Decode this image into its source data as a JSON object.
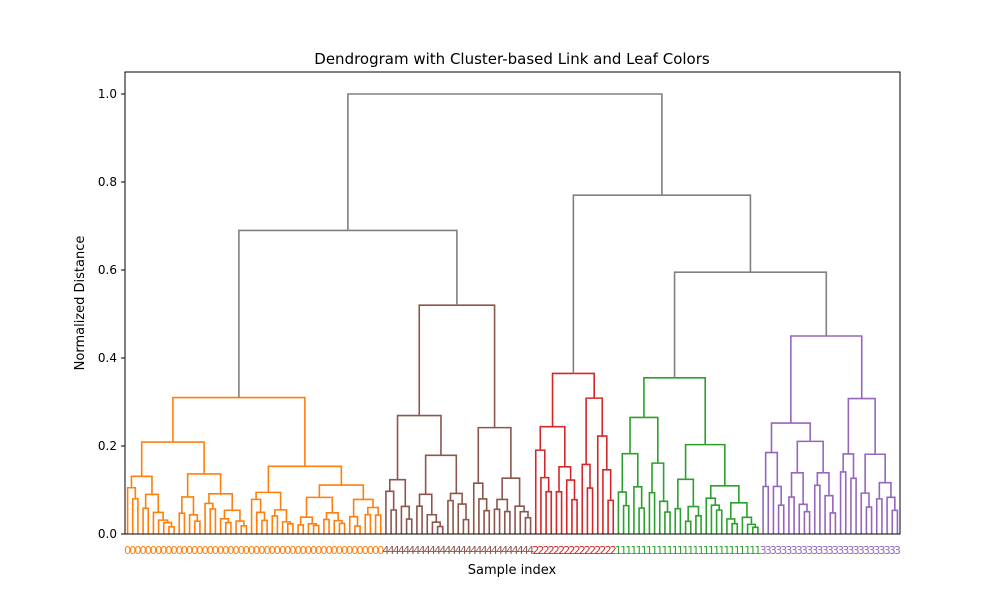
{
  "chart_data": {
    "type": "dendrogram",
    "title": "Dendrogram with Cluster-based Link and Leaf Colors",
    "xlabel": "Sample index",
    "ylabel": "Normalized Distance",
    "ylim": [
      0,
      1.05
    ],
    "yticks": [
      0.0,
      0.2,
      0.4,
      0.6,
      0.8,
      1.0
    ],
    "ytick_labels": [
      "0.0",
      "0.2",
      "0.4",
      "0.6",
      "0.8",
      "1.0"
    ],
    "grid": false,
    "leaf_count": 150,
    "clusters": [
      {
        "label": "0",
        "color": "#ff7f0e",
        "leaves": 50,
        "max_height": 0.31
      },
      {
        "label": "4",
        "color": "#8c564b",
        "leaves": 29,
        "max_height": 0.52
      },
      {
        "label": "2",
        "color": "#d62728",
        "leaves": 16,
        "max_height": 0.365
      },
      {
        "label": "1",
        "color": "#2ca02c",
        "leaves": 28,
        "max_height": 0.355
      },
      {
        "label": "3",
        "color": "#9467bd",
        "leaves": 27,
        "max_height": 0.45
      }
    ],
    "links": [
      {
        "color": "#808080",
        "left": 2,
        "right": 3,
        "height": 1.0,
        "left_h": 0.69,
        "right_h": 0.77
      },
      {
        "color": "#808080",
        "left": 0,
        "right": 1,
        "height": 0.69,
        "left_h": 0.31,
        "right_h": 0.52
      },
      {
        "color": "#808080",
        "left": 2,
        "right": 3,
        "height": 0.77,
        "left_h": 0.365,
        "right_h": 0.595
      },
      {
        "color": "#808080",
        "left": 3,
        "right": 4,
        "height": 0.595,
        "left_h": 0.355,
        "right_h": 0.45
      }
    ],
    "link_color_above_threshold": "#808080"
  }
}
